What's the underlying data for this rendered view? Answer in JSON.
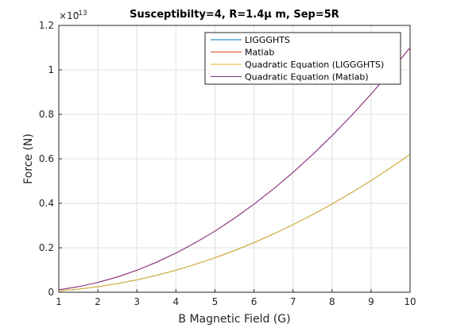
{
  "chart_data": {
    "type": "line",
    "title": "Susceptibilty=4, R=1.4μ m, Sep=5R",
    "xlabel": "B Magnetic Field (G)",
    "ylabel": "Force (N)",
    "y_multiplier": "×10",
    "y_exponent": "-13",
    "x": [
      1,
      1.5,
      2,
      2.5,
      3,
      3.5,
      4,
      4.5,
      5,
      5.5,
      6,
      6.5,
      7,
      7.5,
      8,
      8.5,
      9,
      9.5,
      10
    ],
    "series": [
      {
        "name": "LIGGGHTS",
        "color": "#0072bd",
        "values": [
          0.0062,
          0.014,
          0.0248,
          0.0388,
          0.0558,
          0.076,
          0.0992,
          0.1256,
          0.155,
          0.1876,
          0.2232,
          0.262,
          0.3038,
          0.3488,
          0.3968,
          0.448,
          0.5022,
          0.5596,
          0.62
        ]
      },
      {
        "name": "Matlab",
        "color": "#d95319",
        "values": [
          0.011,
          0.0248,
          0.044,
          0.0688,
          0.099,
          0.1348,
          0.176,
          0.2228,
          0.275,
          0.3328,
          0.396,
          0.4648,
          0.539,
          0.6188,
          0.704,
          0.7948,
          0.891,
          0.9928,
          1.1
        ]
      },
      {
        "name": "Quadratic Equation (LIGGGHTS)",
        "color": "#edb120",
        "values": [
          0.0062,
          0.014,
          0.0248,
          0.0388,
          0.0558,
          0.076,
          0.0992,
          0.1256,
          0.155,
          0.1876,
          0.2232,
          0.262,
          0.3038,
          0.3488,
          0.3968,
          0.448,
          0.5022,
          0.5596,
          0.62
        ]
      },
      {
        "name": "Quadratic Equation (Matlab)",
        "color": "#7e2f8e",
        "values": [
          0.011,
          0.0248,
          0.044,
          0.0688,
          0.099,
          0.1348,
          0.176,
          0.2228,
          0.275,
          0.3328,
          0.396,
          0.4648,
          0.539,
          0.6188,
          0.704,
          0.7948,
          0.891,
          0.9928,
          1.1
        ]
      }
    ],
    "xlim": [
      1,
      10
    ],
    "xticks": [
      1,
      2,
      3,
      4,
      5,
      6,
      7,
      8,
      9,
      10
    ],
    "ylim": [
      0,
      1.2
    ],
    "yticks": [
      0,
      0.2,
      0.4,
      0.6,
      0.8,
      1,
      1.2
    ],
    "grid": true,
    "legend": "northeast"
  }
}
